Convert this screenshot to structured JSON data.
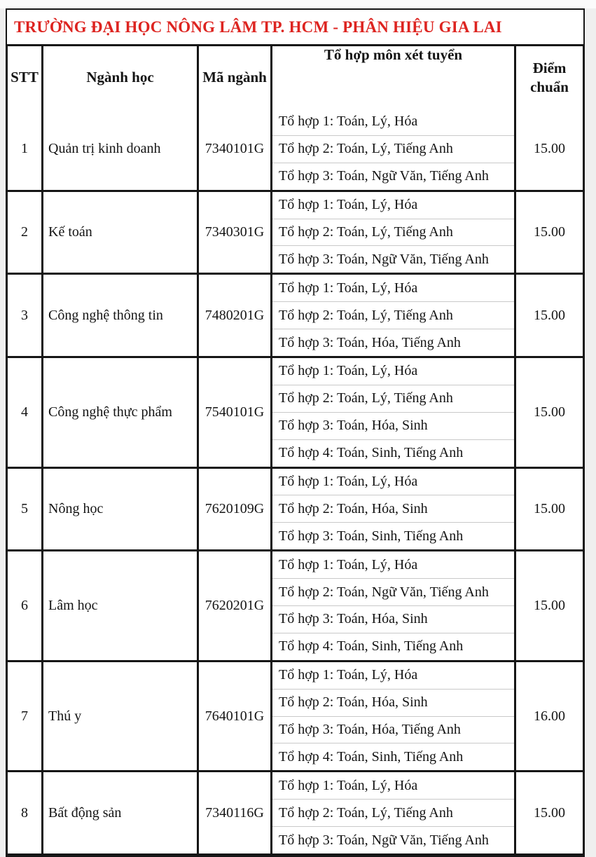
{
  "page": {
    "title": "TRƯỜNG ĐẠI HỌC NÔNG LÂM TP. HCM - PHÂN HIỆU GIA LAI",
    "title_color": "#dd2420"
  },
  "table": {
    "headers": {
      "stt": "STT",
      "major": "Ngành học",
      "code": "Mã ngành",
      "combos": "Tổ hợp môn xét tuyển",
      "score": "Điểm chuẩn"
    },
    "rows": [
      {
        "stt": "1",
        "major": "Quản trị kinh doanh",
        "code": "7340101G",
        "combos": [
          "Tổ hợp 1: Toán, Lý, Hóa",
          "Tổ hợp 2: Toán, Lý, Tiếng Anh",
          "Tổ hợp 3: Toán, Ngữ Văn, Tiếng Anh"
        ],
        "score": "15.00"
      },
      {
        "stt": "2",
        "major": "Kế toán",
        "code": "7340301G",
        "combos": [
          "Tổ hợp 1: Toán, Lý, Hóa",
          "Tổ hợp 2: Toán, Lý, Tiếng Anh",
          "Tổ hợp 3: Toán, Ngữ Văn, Tiếng Anh"
        ],
        "score": "15.00"
      },
      {
        "stt": "3",
        "major": "Công nghệ thông tin",
        "code": "7480201G",
        "combos": [
          "Tổ hợp 1: Toán, Lý, Hóa",
          "Tổ hợp 2: Toán, Lý, Tiếng Anh",
          "Tổ hợp 3: Toán, Hóa, Tiếng Anh"
        ],
        "score": "15.00"
      },
      {
        "stt": "4",
        "major": "Công nghệ thực phẩm",
        "code": "7540101G",
        "combos": [
          "Tổ hợp 1: Toán, Lý, Hóa",
          "Tổ hợp 2: Toán, Lý, Tiếng Anh",
          "Tổ hợp 3: Toán, Hóa, Sinh",
          "Tổ hợp 4: Toán, Sinh, Tiếng Anh"
        ],
        "score": "15.00"
      },
      {
        "stt": "5",
        "major": "Nông học",
        "code": "7620109G",
        "combos": [
          "Tổ hợp 1: Toán, Lý, Hóa",
          "Tổ hợp 2: Toán, Hóa, Sinh",
          "Tổ hợp 3: Toán, Sinh, Tiếng Anh"
        ],
        "score": "15.00"
      },
      {
        "stt": "6",
        "major": "Lâm học",
        "code": "7620201G",
        "combos": [
          "Tổ hợp 1: Toán, Lý, Hóa",
          "Tổ hợp 2: Toán, Ngữ Văn, Tiếng Anh",
          "Tổ hợp 3: Toán, Hóa, Sinh",
          "Tổ hợp 4: Toán, Sinh, Tiếng Anh"
        ],
        "score": "15.00"
      },
      {
        "stt": "7",
        "major": "Thú y",
        "code": "7640101G",
        "combos": [
          "Tổ hợp 1: Toán, Lý, Hóa",
          "Tổ hợp 2: Toán, Hóa, Sinh",
          "Tổ hợp 3: Toán, Hóa, Tiếng Anh",
          "Tổ hợp 4: Toán, Sinh, Tiếng Anh"
        ],
        "score": "16.00"
      },
      {
        "stt": "8",
        "major": "Bất động sản",
        "code": "7340116G",
        "combos": [
          "Tổ hợp 1: Toán, Lý, Hóa",
          "Tổ hợp 2: Toán, Lý, Tiếng Anh",
          "Tổ hợp 3: Toán, Ngữ Văn, Tiếng Anh"
        ],
        "score": "15.00"
      }
    ]
  }
}
